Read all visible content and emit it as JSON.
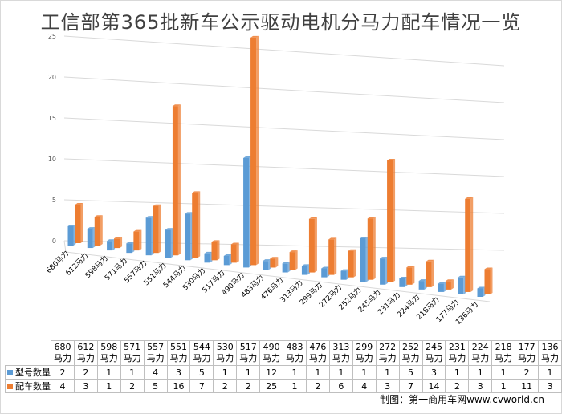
{
  "title": "工信部第365批新车公示驱动电机分马力配车情况一览",
  "credit": "制图：第一商用车网www.cvworld.cn",
  "colors": {
    "series1": "#5b9bd5",
    "series2": "#ed7d31",
    "grid": "#d9d9d9",
    "axis": "#595959"
  },
  "chart_data": {
    "type": "bar",
    "categories": [
      "680马力",
      "612马力",
      "598马力",
      "571马力",
      "557马力",
      "551马力",
      "544马力",
      "530马力",
      "517马力",
      "490马力",
      "483马力",
      "476马力",
      "313马力",
      "299马力",
      "272马力",
      "252马力",
      "245马力",
      "231马力",
      "224马力",
      "218马力",
      "177马力",
      "136马力"
    ],
    "series": [
      {
        "name": "型号数量",
        "values": [
          2,
          2,
          1,
          1,
          4,
          3,
          5,
          1,
          1,
          12,
          1,
          1,
          1,
          1,
          1,
          5,
          3,
          1,
          1,
          1,
          2,
          1
        ]
      },
      {
        "name": "配车数量",
        "values": [
          4,
          3,
          1,
          2,
          5,
          16,
          7,
          2,
          2,
          25,
          1,
          2,
          6,
          4,
          3,
          7,
          14,
          2,
          3,
          1,
          11,
          3
        ]
      }
    ],
    "yticks": [
      "0",
      "5",
      "10",
      "15",
      "20",
      "25"
    ],
    "ylim": [
      0,
      25
    ],
    "grid": true,
    "legend": "bottom-left"
  },
  "table": {
    "categories": [
      "680马力",
      "612马力",
      "598马力",
      "571马力",
      "557马力",
      "551马力",
      "544马力",
      "530马力",
      "517马力",
      "490马力",
      "483马力",
      "476马力",
      "313马力",
      "299马力",
      "272马力",
      "252马力",
      "245马力",
      "231马力",
      "224马力",
      "218马力",
      "177马力",
      "136马力"
    ]
  }
}
